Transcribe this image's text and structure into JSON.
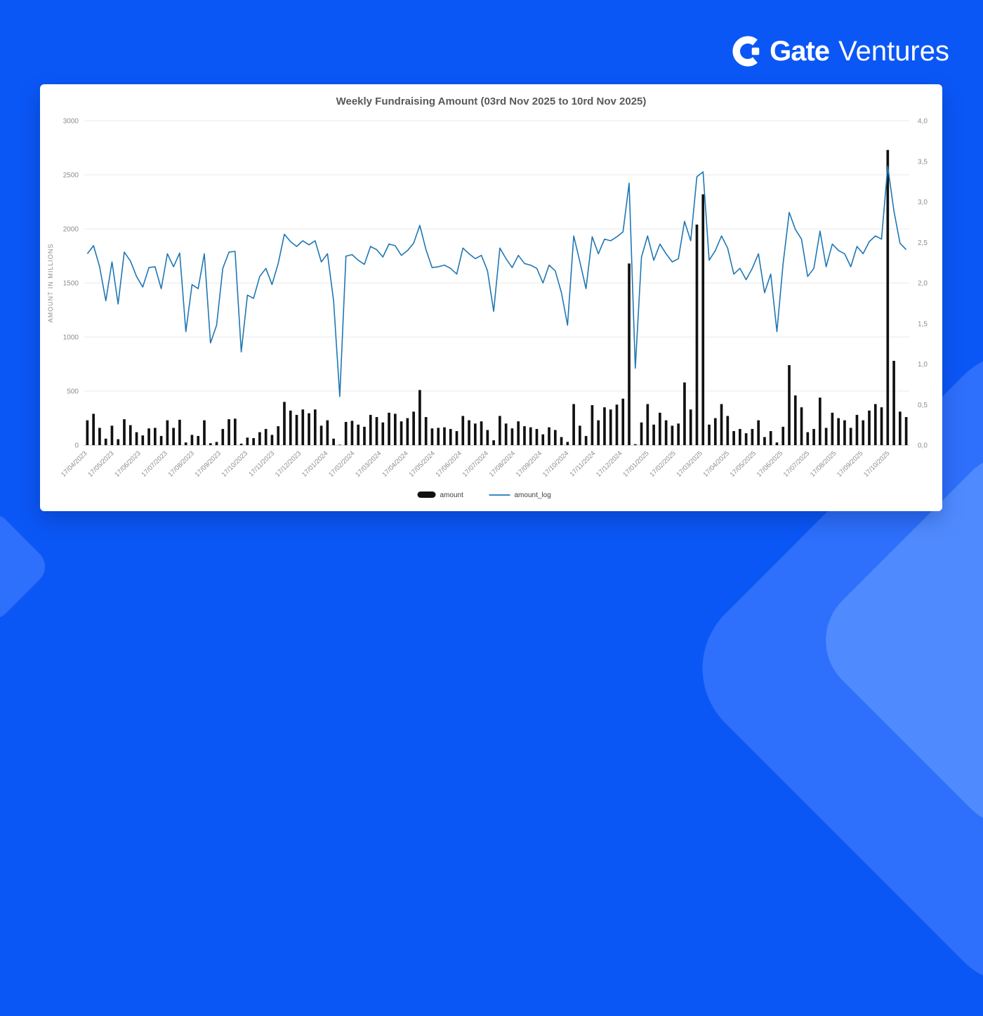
{
  "brand": {
    "name_bold": "Gate",
    "name_light": "Ventures"
  },
  "colors": {
    "background": "#0b57f6",
    "decor_blue": "#2e6ffb",
    "decor_blue_light": "#4f8bff",
    "card": "#ffffff",
    "title_text": "#595959",
    "tick_text": "#8c8c8c",
    "legend_text": "#3c3c3c",
    "grid": "#e8e8e8",
    "grid_baseline": "#c9c9c9",
    "bar": "#111111",
    "line": "#1f77b4"
  },
  "chart_data": {
    "type": "bar",
    "combo": "bar+line",
    "title": "Weekly Fundraising Amount (03rd Nov 2025 to 10rd Nov 2025)",
    "ylabel_left": "AMOUNT IN MILLIONS",
    "axis_left": {
      "min": 0,
      "max": 3000,
      "ticks": [
        0,
        500,
        1000,
        1500,
        2000,
        2500,
        3000
      ]
    },
    "axis_right": {
      "min": 0,
      "max": 4,
      "step": 0.5,
      "tick_labels": [
        "0,0",
        "0,5",
        "1,0",
        "1,5",
        "2,0",
        "2,5",
        "3,0",
        "3,5",
        "4,0"
      ]
    },
    "x_tick_labels": [
      "17/04/2023",
      "17/05/2023",
      "17/06/2023",
      "17/07/2023",
      "17/08/2023",
      "17/09/2023",
      "17/10/2023",
      "17/11/2023",
      "17/12/2023",
      "17/01/2024",
      "17/02/2024",
      "17/03/2024",
      "17/04/2024",
      "17/05/2024",
      "17/06/2024",
      "17/07/2024",
      "17/08/2024",
      "17/09/2024",
      "17/10/2024",
      "17/11/2024",
      "17/12/2024",
      "17/01/2025",
      "17/02/2025",
      "17/03/2025",
      "17/04/2025",
      "17/05/2025",
      "17/06/2025",
      "17/07/2025",
      "17/08/2025",
      "17/09/2025",
      "17/10/2025"
    ],
    "weeks_per_tick": 4.345,
    "grid": "horizontal",
    "legend_position": "bottom-center",
    "series": [
      {
        "name": "amount",
        "type": "bar",
        "axis": "left",
        "color": "#111111",
        "values": [
          230,
          290,
          160,
          60,
          180,
          55,
          240,
          185,
          120,
          90,
          155,
          160,
          85,
          230,
          160,
          235,
          25,
          95,
          85,
          230,
          18,
          30,
          150,
          240,
          245,
          14,
          70,
          65,
          120,
          150,
          95,
          175,
          400,
          320,
          280,
          330,
          295,
          330,
          180,
          230,
          60,
          4,
          215,
          225,
          190,
          170,
          280,
          260,
          210,
          300,
          290,
          220,
          250,
          310,
          510,
          260,
          155,
          160,
          165,
          150,
          130,
          270,
          230,
          200,
          220,
          140,
          45,
          270,
          200,
          155,
          220,
          175,
          165,
          150,
          100,
          165,
          140,
          75,
          30,
          380,
          180,
          85,
          370,
          230,
          350,
          330,
          375,
          430,
          1680,
          9,
          210,
          380,
          190,
          300,
          230,
          180,
          200,
          580,
          330,
          2040,
          2320,
          190,
          250,
          380,
          270,
          130,
          150,
          110,
          150,
          230,
          75,
          130,
          25,
          170,
          740,
          460,
          350,
          120,
          150,
          440,
          160,
          300,
          250,
          230,
          160,
          280,
          230,
          320,
          380,
          350,
          2730,
          780,
          310,
          260
        ]
      },
      {
        "name": "amount_log",
        "type": "line",
        "axis": "right",
        "color": "#1f77b4",
        "values": [
          2.36,
          2.46,
          2.2,
          1.78,
          2.26,
          1.74,
          2.38,
          2.27,
          2.08,
          1.95,
          2.19,
          2.2,
          1.93,
          2.36,
          2.2,
          2.37,
          1.4,
          1.98,
          1.93,
          2.36,
          1.26,
          1.48,
          2.18,
          2.38,
          2.39,
          1.15,
          1.85,
          1.81,
          2.08,
          2.18,
          1.98,
          2.24,
          2.6,
          2.51,
          2.45,
          2.52,
          2.47,
          2.52,
          2.26,
          2.36,
          1.78,
          0.6,
          2.33,
          2.35,
          2.28,
          2.23,
          2.45,
          2.41,
          2.32,
          2.48,
          2.46,
          2.34,
          2.4,
          2.49,
          2.71,
          2.41,
          2.19,
          2.2,
          2.22,
          2.18,
          2.11,
          2.43,
          2.36,
          2.3,
          2.34,
          2.15,
          1.65,
          2.43,
          2.3,
          2.19,
          2.34,
          2.24,
          2.22,
          2.18,
          2.0,
          2.22,
          2.15,
          1.88,
          1.48,
          2.58,
          2.26,
          1.93,
          2.57,
          2.36,
          2.54,
          2.52,
          2.57,
          2.63,
          3.23,
          0.95,
          2.32,
          2.58,
          2.28,
          2.48,
          2.36,
          2.26,
          2.3,
          2.76,
          2.52,
          3.31,
          3.37,
          2.28,
          2.4,
          2.58,
          2.43,
          2.11,
          2.18,
          2.04,
          2.18,
          2.36,
          1.88,
          2.11,
          1.4,
          2.23,
          2.87,
          2.66,
          2.54,
          2.08,
          2.18,
          2.64,
          2.2,
          2.48,
          2.4,
          2.36,
          2.2,
          2.45,
          2.36,
          2.51,
          2.58,
          2.54,
          3.44,
          2.89,
          2.49,
          2.41
        ]
      }
    ]
  }
}
